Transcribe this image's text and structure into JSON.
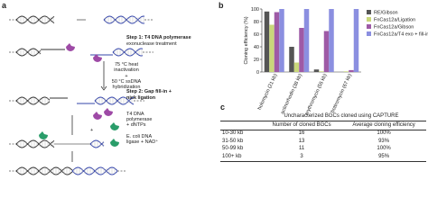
{
  "diagram": {
    "label": "a",
    "step1": [
      "Step 1: T4 DNA polymerase",
      "exonuclease treatment"
    ],
    "heat": [
      "75 °C heat",
      "inactivation"
    ],
    "plus1": "+",
    "hybrid": [
      "50 °C ssDNA",
      "hybridization"
    ],
    "step2": [
      "Step 2: Gap fill-in +",
      "nick ligation"
    ],
    "polymerase": [
      "T4 DNA",
      "polymerase",
      "+ dNTPs"
    ],
    "plus2": "+",
    "ligase": [
      "E. coli DNA",
      "ligase + NAD⁺"
    ]
  },
  "chart_data": {
    "type": "bar",
    "label": "b",
    "ylabel": "Cloning efficiency (%)",
    "categories": [
      "holomycin (21 kb)",
      "actinorhodin (38 kb)",
      "erythromycin (55 kb)",
      "bottromycin (67 kb)"
    ],
    "series": [
      {
        "name": "RE/Gibson",
        "color": "#555555",
        "values": [
          96,
          40,
          4,
          0
        ]
      },
      {
        "name": "FnCas12a/Ligation",
        "color": "#c9d77a",
        "values": [
          75,
          15,
          1,
          1
        ]
      },
      {
        "name": "FnCas12a/Gibson",
        "color": "#9e5aa6",
        "values": [
          95,
          70,
          65,
          3
        ]
      },
      {
        "name": "FnCas12a/T4 exo + fill-in",
        "color": "#8b8fe0",
        "values": [
          100,
          100,
          100,
          100
        ]
      }
    ],
    "ylim": [
      0,
      100
    ],
    "yticks": [
      0,
      20,
      40,
      60,
      80,
      100
    ]
  },
  "table": {
    "label": "c",
    "title": "Uncharacterized BGCs cloned using CAPTURE",
    "header": [
      "Number of cloned BGCs",
      "Average cloning efficiency"
    ],
    "rows": [
      [
        "10-30 kb",
        "16",
        "100%"
      ],
      [
        "31-50 kb",
        "13",
        "93%"
      ],
      [
        "50-99 kb",
        "11",
        "100%"
      ],
      [
        "100+ kb",
        "3",
        "95%"
      ]
    ]
  }
}
